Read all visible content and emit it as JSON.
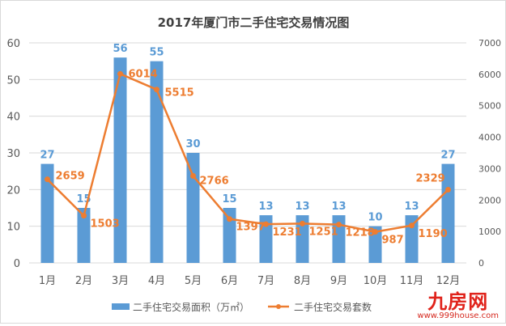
{
  "chart_data": {
    "type": "bar+line",
    "title": "2017年厦门市二手住宅交易情况图",
    "categories": [
      "1月",
      "2月",
      "3月",
      "4月",
      "5月",
      "6月",
      "7月",
      "8月",
      "9月",
      "10月",
      "11月",
      "12月"
    ],
    "series": [
      {
        "name": "二手住宅交易面积（万㎡）",
        "type": "bar",
        "axis": "left",
        "color": "#5b9bd5",
        "values": [
          27,
          15,
          56,
          55,
          30,
          15,
          13,
          13,
          13,
          10,
          13,
          27
        ]
      },
      {
        "name": "二手住宅交易套数",
        "type": "line",
        "axis": "right",
        "color": "#ed7d31",
        "values": [
          2659,
          1503,
          6014,
          5515,
          2766,
          1397,
          1231,
          1251,
          1218,
          987,
          1190,
          2329
        ]
      }
    ],
    "y_left": {
      "lim": [
        0,
        60
      ],
      "ticks": [
        "0",
        "10",
        "20",
        "30",
        "40",
        "50",
        "60"
      ]
    },
    "y_right": {
      "lim": [
        0,
        7000
      ],
      "ticks": [
        "0",
        "1000",
        "2000",
        "3000",
        "4000",
        "5000",
        "6000",
        "7000"
      ]
    },
    "grid": true,
    "legend": "bottom"
  },
  "watermark": {
    "logo": "九房网",
    "url": "www.999house.com"
  }
}
